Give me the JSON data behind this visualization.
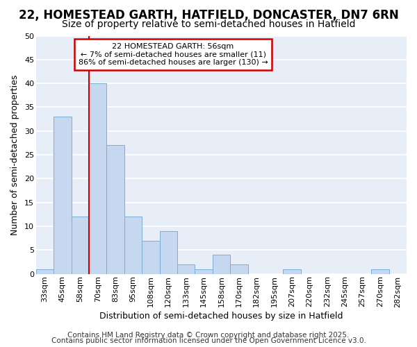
{
  "title1": "22, HOMESTEAD GARTH, HATFIELD, DONCASTER, DN7 6RN",
  "title2": "Size of property relative to semi-detached houses in Hatfield",
  "xlabel": "Distribution of semi-detached houses by size in Hatfield",
  "ylabel": "Number of semi-detached properties",
  "categories": [
    "33sqm",
    "45sqm",
    "58sqm",
    "70sqm",
    "83sqm",
    "95sqm",
    "108sqm",
    "120sqm",
    "133sqm",
    "145sqm",
    "158sqm",
    "170sqm",
    "182sqm",
    "195sqm",
    "207sqm",
    "220sqm",
    "232sqm",
    "245sqm",
    "257sqm",
    "270sqm",
    "282sqm"
  ],
  "values": [
    1,
    33,
    12,
    40,
    27,
    12,
    7,
    9,
    2,
    1,
    4,
    2,
    0,
    0,
    1,
    0,
    0,
    0,
    0,
    1,
    0
  ],
  "bar_color": "#c5d8f0",
  "bar_edge_color": "#7bafd4",
  "vline_x": 2.5,
  "vline_color": "#cc0000",
  "annotation_title": "22 HOMESTEAD GARTH: 56sqm",
  "annotation_line1": "← 7% of semi-detached houses are smaller (11)",
  "annotation_line2": "86% of semi-detached houses are larger (130) →",
  "annotation_box_color": "white",
  "annotation_box_edge": "#cc0000",
  "ylim": [
    0,
    50
  ],
  "yticks": [
    0,
    5,
    10,
    15,
    20,
    25,
    30,
    35,
    40,
    45,
    50
  ],
  "footer1": "Contains HM Land Registry data © Crown copyright and database right 2025.",
  "footer2": "Contains public sector information licensed under the Open Government Licence v3.0.",
  "bg_color": "#ffffff",
  "plot_bg_color": "#e8eef8",
  "grid_color": "#ffffff",
  "title1_fontsize": 12,
  "title2_fontsize": 10,
  "xlabel_fontsize": 9,
  "ylabel_fontsize": 9,
  "tick_fontsize": 8,
  "ann_fontsize": 8,
  "footer_fontsize": 7.5
}
